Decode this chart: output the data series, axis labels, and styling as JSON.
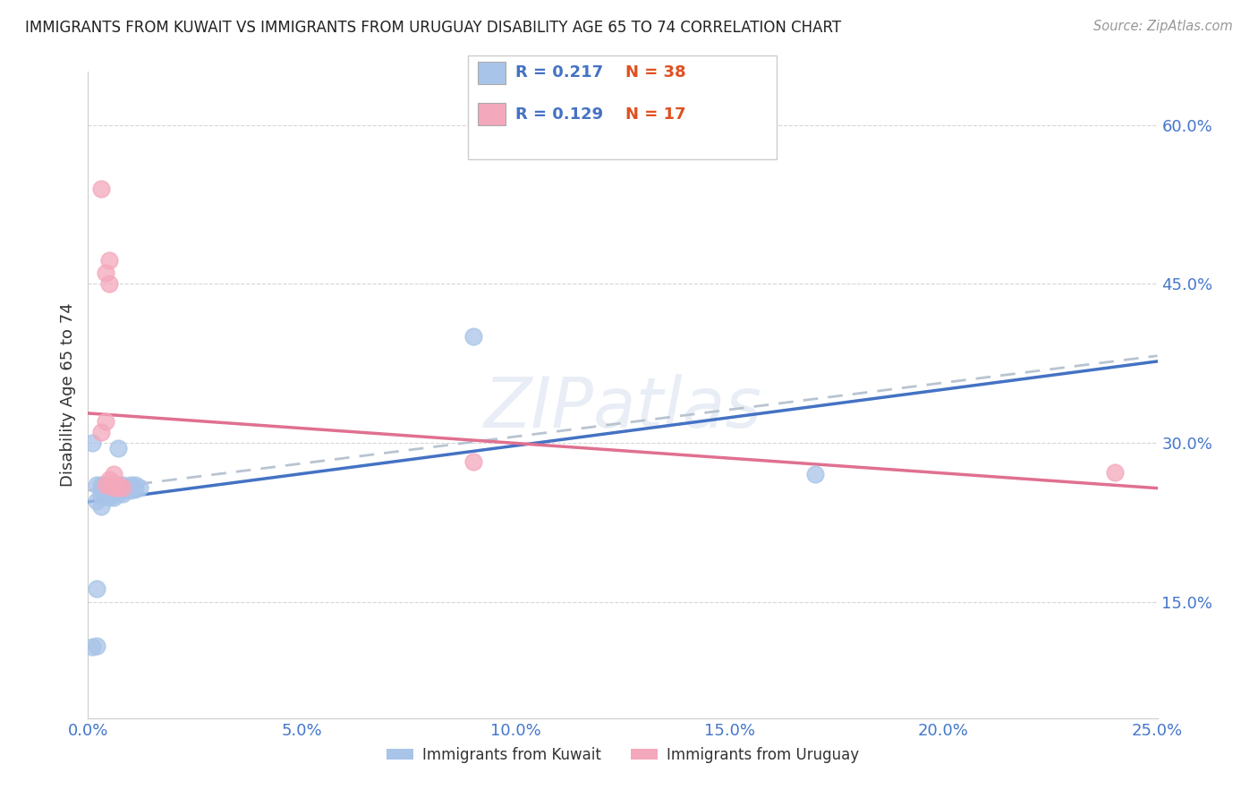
{
  "title": "IMMIGRANTS FROM KUWAIT VS IMMIGRANTS FROM URUGUAY DISABILITY AGE 65 TO 74 CORRELATION CHART",
  "source": "Source: ZipAtlas.com",
  "ylabel": "Disability Age 65 to 74",
  "xlim": [
    0.0,
    0.25
  ],
  "ylim": [
    0.04,
    0.65
  ],
  "xticks": [
    0.0,
    0.05,
    0.1,
    0.15,
    0.2,
    0.25
  ],
  "yticks": [
    0.15,
    0.3,
    0.45,
    0.6
  ],
  "ytick_labels": [
    "15.0%",
    "30.0%",
    "45.0%",
    "60.0%"
  ],
  "xtick_labels": [
    "0.0%",
    "5.0%",
    "10.0%",
    "15.0%",
    "20.0%",
    "25.0%"
  ],
  "kuwait_R": 0.217,
  "kuwait_N": 38,
  "uruguay_R": 0.129,
  "uruguay_N": 17,
  "kuwait_color": "#a8c4e8",
  "uruguay_color": "#f4a8bc",
  "kuwait_line_color": "#4472c4",
  "uruguay_line_color": "#e07090",
  "dash_line_color": "#b8c4d0",
  "legend_label_kuwait": "Immigrants from Kuwait",
  "legend_label_uruguay": "Immigrants from Uruguay",
  "kuwait_x": [
    0.001,
    0.002,
    0.002,
    0.003,
    0.003,
    0.003,
    0.004,
    0.004,
    0.004,
    0.005,
    0.005,
    0.005,
    0.005,
    0.006,
    0.006,
    0.006,
    0.006,
    0.007,
    0.007,
    0.007,
    0.007,
    0.008,
    0.008,
    0.008,
    0.009,
    0.009,
    0.01,
    0.01,
    0.01,
    0.011,
    0.011,
    0.012,
    0.002,
    0.003,
    0.09,
    0.001,
    0.17,
    0.002
  ],
  "kuwait_y": [
    0.3,
    0.26,
    0.245,
    0.26,
    0.255,
    0.25,
    0.255,
    0.26,
    0.25,
    0.255,
    0.25,
    0.255,
    0.248,
    0.258,
    0.252,
    0.255,
    0.248,
    0.255,
    0.258,
    0.252,
    0.295,
    0.26,
    0.255,
    0.252,
    0.258,
    0.255,
    0.26,
    0.255,
    0.258,
    0.26,
    0.256,
    0.258,
    0.162,
    0.24,
    0.4,
    0.107,
    0.27,
    0.108
  ],
  "uruguay_x": [
    0.003,
    0.004,
    0.005,
    0.005,
    0.005,
    0.006,
    0.006,
    0.007,
    0.008,
    0.004,
    0.006,
    0.003,
    0.004,
    0.09,
    0.24,
    0.005,
    0.007
  ],
  "uruguay_y": [
    0.54,
    0.46,
    0.45,
    0.265,
    0.26,
    0.27,
    0.258,
    0.26,
    0.258,
    0.32,
    0.262,
    0.31,
    0.26,
    0.282,
    0.272,
    0.472,
    0.258
  ],
  "background_color": "#ffffff",
  "watermark": "ZIPatlas"
}
